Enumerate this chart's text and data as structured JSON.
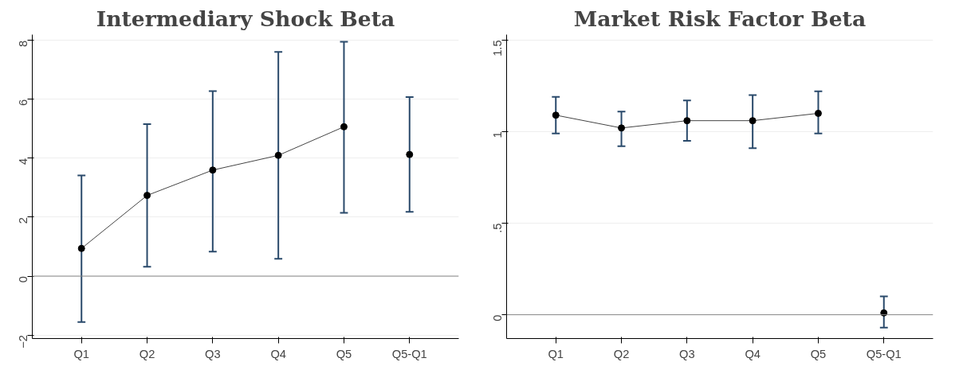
{
  "chart_data": [
    {
      "type": "line",
      "title": "Intermediary Shock Beta",
      "categories": [
        "Q1",
        "Q2",
        "Q3",
        "Q4",
        "Q5",
        "Q5-Q1"
      ],
      "ylim": [
        -2.12,
        8.2
      ],
      "yticks": [
        -2,
        0,
        2,
        4,
        6,
        8
      ],
      "grid": "y",
      "marker": "circle",
      "line_style": "solid",
      "ref_lines": [
        {
          "axis": "y",
          "value": 0,
          "color": "#888888"
        }
      ],
      "series": [
        {
          "type": "line",
          "color": "#000000",
          "values": [
            0.94,
            2.74,
            3.6,
            4.1,
            5.07,
            null
          ],
          "errors": [
            [
              -1.56,
              3.42
            ],
            [
              0.32,
              5.16
            ],
            [
              0.83,
              6.28
            ],
            [
              0.59,
              7.61
            ],
            [
              2.15,
              7.96
            ],
            null
          ]
        },
        {
          "type": "scatter",
          "color": "#000000",
          "x": [
            "Q5-Q1"
          ],
          "values": [
            4.13
          ],
          "errors": [
            [
              2.18,
              6.08
            ]
          ]
        }
      ]
    },
    {
      "type": "line",
      "title": "Market Risk Factor Beta",
      "categories": [
        "Q1",
        "Q2",
        "Q3",
        "Q4",
        "Q5",
        "Q5-Q1"
      ],
      "ylim": [
        -0.13,
        1.53
      ],
      "yticks": [
        0,
        {
          "value": 0.5,
          "label": ".5"
        },
        1,
        1.5
      ],
      "grid": "y",
      "marker": "circle",
      "line_style": "solid",
      "ref_lines": [
        {
          "axis": "y",
          "value": 0,
          "color": "#888888"
        }
      ],
      "series": [
        {
          "type": "line",
          "color": "#000000",
          "values": [
            1.09,
            1.02,
            1.06,
            1.06,
            1.1,
            null
          ],
          "errors": [
            [
              0.99,
              1.19
            ],
            [
              0.92,
              1.11
            ],
            [
              0.95,
              1.17
            ],
            [
              0.91,
              1.2
            ],
            [
              0.99,
              1.22
            ],
            null
          ]
        },
        {
          "type": "scatter",
          "color": "#000000",
          "x": [
            "Q5-Q1"
          ],
          "values": [
            0.01
          ],
          "errors": [
            [
              -0.07,
              0.1
            ]
          ]
        }
      ]
    }
  ]
}
